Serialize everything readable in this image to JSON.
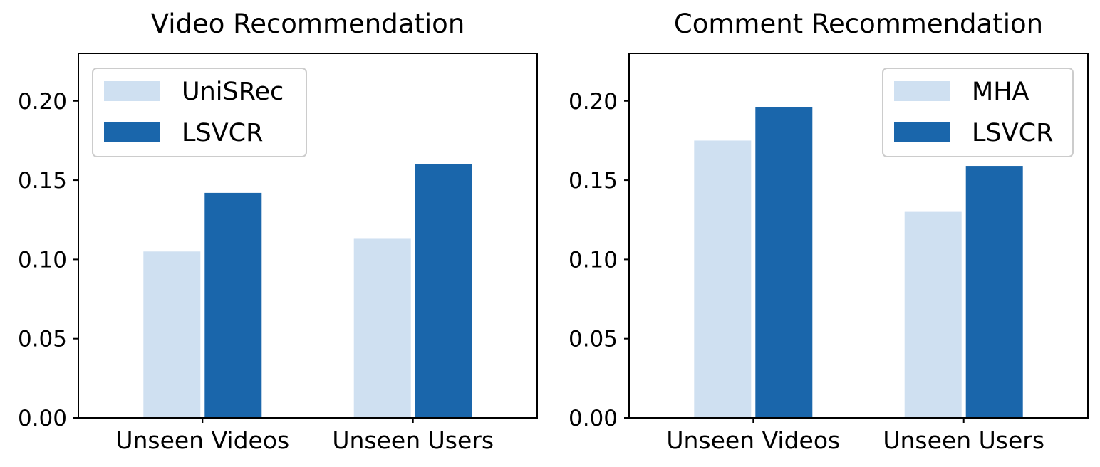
{
  "chart_data": [
    {
      "type": "bar",
      "title": "Video Recommendation",
      "categories": [
        "Unseen Videos",
        "Unseen Users"
      ],
      "series": [
        {
          "name": "UniSRec",
          "values": [
            0.105,
            0.113
          ],
          "color": "#cfe0f1"
        },
        {
          "name": "LSVCR",
          "values": [
            0.142,
            0.16
          ],
          "color": "#1a66ab"
        }
      ],
      "yticks": [
        "0.00",
        "0.05",
        "0.10",
        "0.15",
        "0.20"
      ],
      "ylim": [
        0,
        0.23
      ],
      "legend_position": "upper-left"
    },
    {
      "type": "bar",
      "title": "Comment Recommendation",
      "categories": [
        "Unseen Videos",
        "Unseen Users"
      ],
      "series": [
        {
          "name": "MHA",
          "values": [
            0.175,
            0.13
          ],
          "color": "#cfe0f1"
        },
        {
          "name": "LSVCR",
          "values": [
            0.196,
            0.159
          ],
          "color": "#1a66ab"
        }
      ],
      "yticks": [
        "0.00",
        "0.05",
        "0.10",
        "0.15",
        "0.20"
      ],
      "ylim": [
        0,
        0.23
      ],
      "legend_position": "upper-right"
    }
  ]
}
